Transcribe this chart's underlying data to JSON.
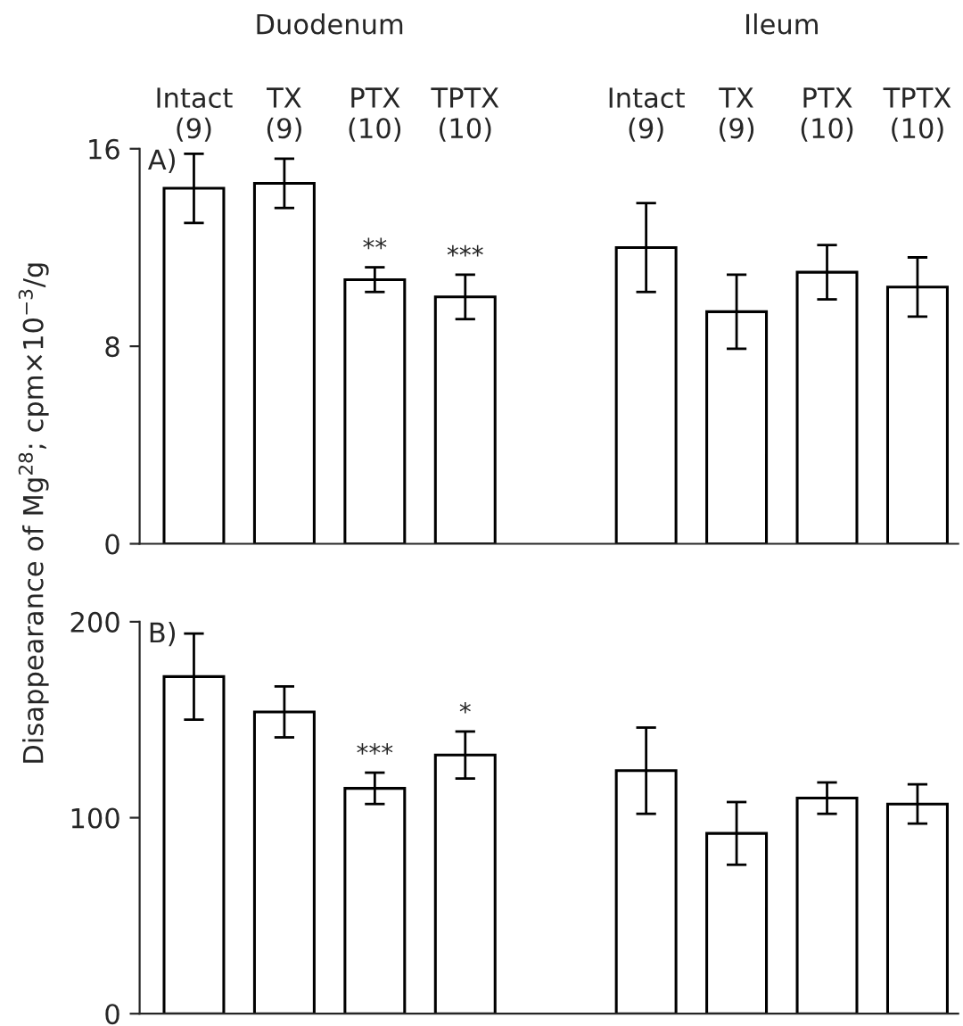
{
  "chart_data": [
    {
      "type": "bar",
      "title": "A)",
      "ylabel": "Disappearance of Mg$^{28}$; cpm×10$^{−3}$/g",
      "categories": [
        "Intact\n(9)",
        "TX\n(9)",
        "PTX\n(10)",
        "TPTX\n(10)",
        null,
        "Intact\n(9)",
        "TX\n(9)",
        "PTX\n(10)",
        "TPTX\n(10)"
      ],
      "series": [
        {
          "color": "#ffffff",
          "values": [
            14.4,
            14.6,
            10.7,
            10.0,
            null,
            12.0,
            9.4,
            11.0,
            10.4
          ],
          "errors": [
            1.4,
            1.0,
            0.5,
            0.9,
            null,
            1.8,
            1.5,
            1.1,
            1.2
          ],
          "value_labels": [
            null,
            null,
            "**",
            "***",
            null,
            null,
            null,
            null,
            null
          ]
        }
      ],
      "annotations": [
        "Duodenum",
        "Ileum"
      ],
      "ylim": [
        0,
        16
      ],
      "yticks": [
        0,
        8,
        16
      ],
      "grid": false,
      "legend": false
    },
    {
      "type": "bar",
      "title": "B)",
      "categories": [
        null,
        null,
        null,
        null,
        null,
        null,
        null,
        null,
        null
      ],
      "series": [
        {
          "color": "#ffffff",
          "values": [
            172,
            154,
            115,
            132,
            null,
            124,
            92,
            110,
            107
          ],
          "errors": [
            22,
            13,
            8,
            12,
            null,
            22,
            16,
            8,
            10
          ],
          "value_labels": [
            null,
            null,
            "***",
            "*",
            null,
            null,
            null,
            null,
            null
          ]
        }
      ],
      "ylim": [
        0,
        200
      ],
      "yticks": [
        0,
        100,
        200
      ],
      "tick_labels": "y",
      "grid": false,
      "legend": false
    }
  ]
}
